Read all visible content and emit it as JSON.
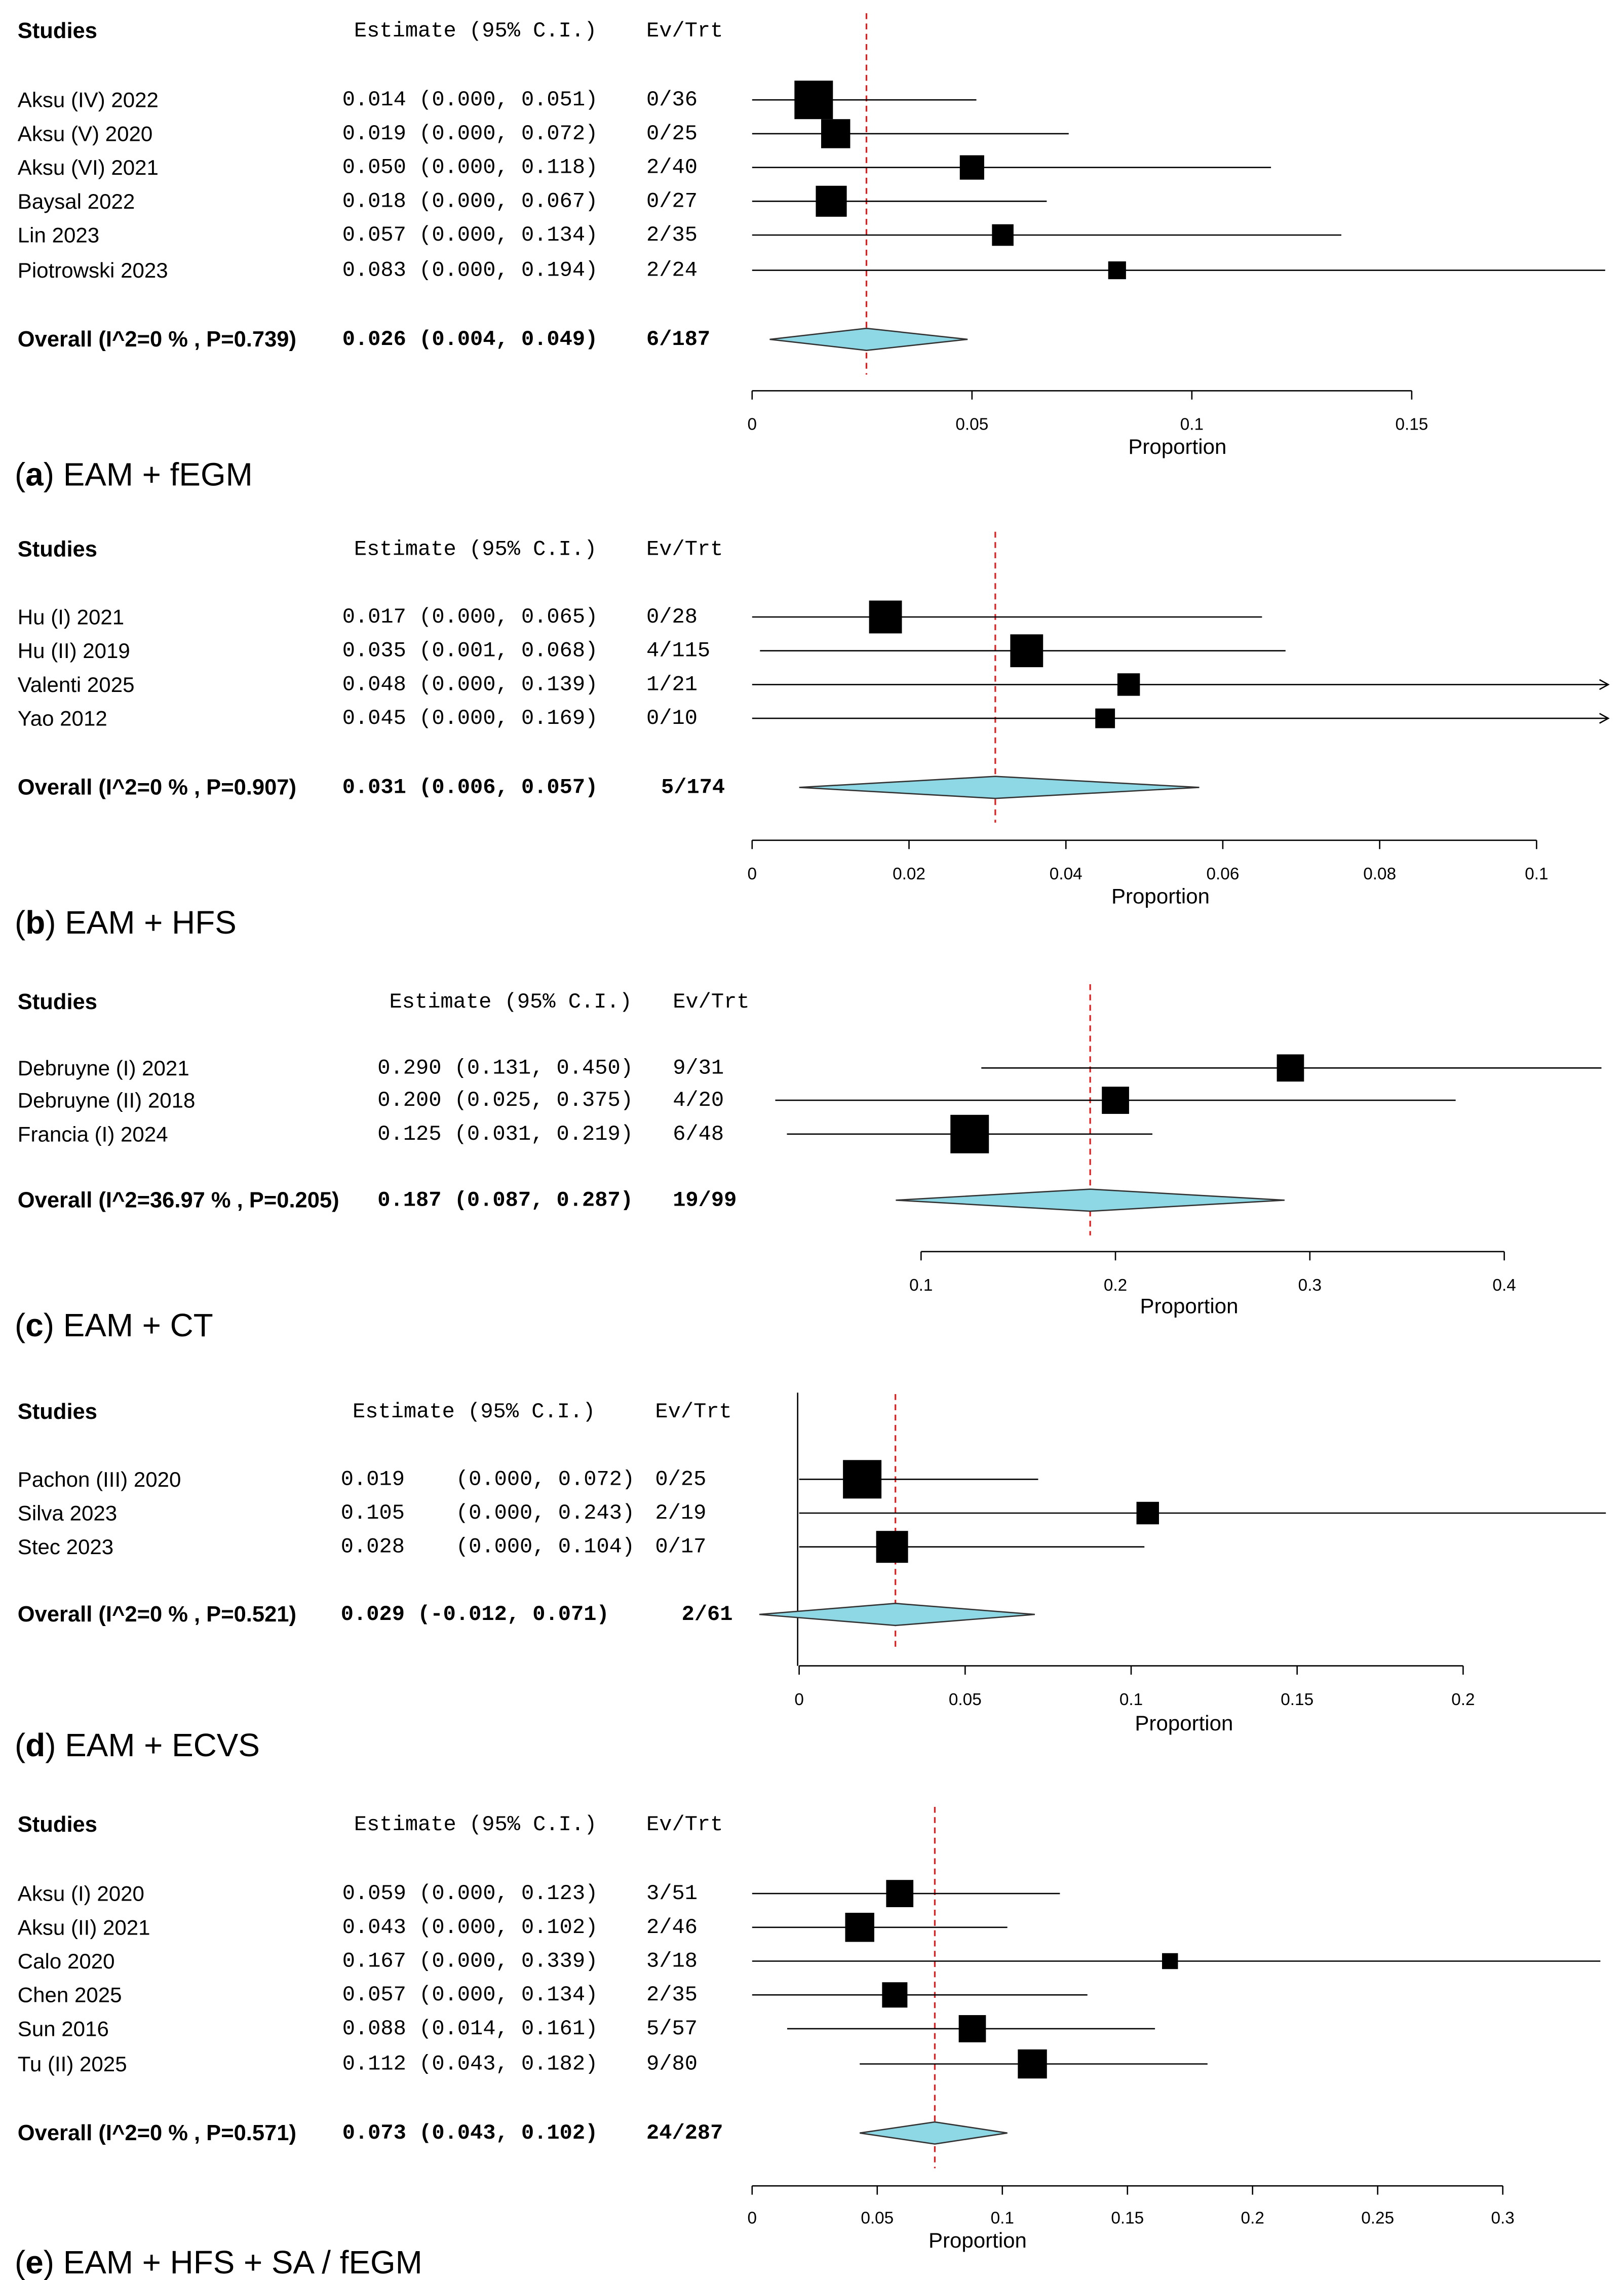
{
  "figure": {
    "headers": {
      "studies": "Studies",
      "estimate": "Estimate (95% C.I.)",
      "evtrt": "Ev/Trt"
    },
    "axis_label": "Proportion",
    "colors": {
      "diamond": "#8ED8E6",
      "reference_line": "#E02020",
      "marker": "#000000"
    }
  },
  "chart_data": [
    {
      "id": "a",
      "type": "forest",
      "caption_letter": "a",
      "caption_text": " EAM + fEGM",
      "xlabel": "Proportion",
      "xlim": [
        0,
        0.15
      ],
      "ticks": [
        0,
        0.05,
        0.1,
        0.15
      ],
      "tick_labels": [
        "0",
        "0.05",
        "0.1",
        "0.15"
      ],
      "reference_line": 0.026,
      "studies": [
        {
          "name": "Aksu (IV) 2022",
          "est": 0.014,
          "lo": 0.0,
          "hi": 0.051,
          "estimate_text": "0.014 (0.000, 0.051)",
          "evtrt": "0/36",
          "weight": 3
        },
        {
          "name": "Aksu (V) 2020",
          "est": 0.019,
          "lo": 0.0,
          "hi": 0.072,
          "estimate_text": "0.019 (0.000, 0.072)",
          "evtrt": "0/25",
          "weight": 2
        },
        {
          "name": "Aksu (VI) 2021",
          "est": 0.05,
          "lo": 0.0,
          "hi": 0.118,
          "estimate_text": "0.050 (0.000, 0.118)",
          "evtrt": "2/40",
          "weight": 1.5
        },
        {
          "name": "Baysal 2022",
          "est": 0.018,
          "lo": 0.0,
          "hi": 0.067,
          "estimate_text": "0.018 (0.000, 0.067)",
          "evtrt": "0/27",
          "weight": 2.2
        },
        {
          "name": "Lin 2023",
          "est": 0.057,
          "lo": 0.0,
          "hi": 0.134,
          "estimate_text": "0.057 (0.000, 0.134)",
          "evtrt": "2/35",
          "weight": 1.2
        },
        {
          "name": "Piotrowski 2023",
          "est": 0.083,
          "lo": 0.0,
          "hi": 0.194,
          "estimate_text": "0.083 (0.000, 0.194)",
          "evtrt": "2/24",
          "weight": 0.8
        }
      ],
      "overall": {
        "label": "Overall (I^2=0 % , P=0.739)",
        "est": 0.026,
        "lo": 0.004,
        "hi": 0.049,
        "estimate_text": "0.026 (0.004, 0.049)",
        "evtrt": "6/187"
      }
    },
    {
      "id": "b",
      "type": "forest",
      "caption_letter": "b",
      "caption_text": " EAM + HFS",
      "xlabel": "Proportion",
      "xlim": [
        0,
        0.1
      ],
      "ticks": [
        0,
        0.02,
        0.04,
        0.06,
        0.08,
        0.1
      ],
      "tick_labels": [
        "0",
        "0.02",
        "0.04",
        "0.06",
        "0.08",
        "0.1"
      ],
      "reference_line": 0.031,
      "studies": [
        {
          "name": "Hu (I) 2021",
          "est": 0.017,
          "lo": 0.0,
          "hi": 0.065,
          "estimate_text": "0.017 (0.000, 0.065)",
          "evtrt": "0/28",
          "weight": 2.4
        },
        {
          "name": "Hu (II) 2019",
          "est": 0.035,
          "lo": 0.001,
          "hi": 0.068,
          "estimate_text": "0.035 (0.001, 0.068)",
          "evtrt": "4/115",
          "weight": 2.4
        },
        {
          "name": "Valenti 2025",
          "est": 0.048,
          "lo": 0.0,
          "hi": 0.139,
          "estimate_text": "0.048 (0.000, 0.139)",
          "evtrt": "1/21",
          "weight": 1.3
        },
        {
          "name": "Yao 2012",
          "est": 0.045,
          "lo": 0.0,
          "hi": 0.169,
          "estimate_text": "0.045 (0.000, 0.169)",
          "evtrt": "0/10",
          "weight": 1
        }
      ],
      "overall": {
        "label": "Overall (I^2=0 % , P=0.907)",
        "est": 0.031,
        "lo": 0.006,
        "hi": 0.057,
        "estimate_text": "0.031 (0.006, 0.057)",
        "evtrt": "5/174"
      }
    },
    {
      "id": "c",
      "type": "forest",
      "caption_letter": "c",
      "caption_text": " EAM + CT",
      "xlabel": "Proportion",
      "xlim": [
        0.1,
        0.4
      ],
      "ticks": [
        0.1,
        0.2,
        0.3,
        0.4
      ],
      "tick_labels": [
        "0.1",
        "0.2",
        "0.3",
        "0.4"
      ],
      "reference_line": 0.187,
      "studies": [
        {
          "name": "Debruyne (I) 2021",
          "est": 0.29,
          "lo": 0.131,
          "hi": 0.45,
          "estimate_text": "0.290 (0.131, 0.450)",
          "evtrt": "9/31",
          "weight": 1.8
        },
        {
          "name": "Debruyne (II) 2018",
          "est": 0.2,
          "lo": 0.025,
          "hi": 0.375,
          "estimate_text": "0.200 (0.025, 0.375)",
          "evtrt": "4/20",
          "weight": 1.8
        },
        {
          "name": "Francia (I) 2024",
          "est": 0.125,
          "lo": 0.031,
          "hi": 0.219,
          "estimate_text": "0.125 (0.031, 0.219)",
          "evtrt": "6/48",
          "weight": 3
        }
      ],
      "overall": {
        "label": "Overall (I^2=36.97 % , P=0.205)",
        "est": 0.187,
        "lo": 0.087,
        "hi": 0.287,
        "estimate_text": "0.187 (0.087, 0.287)",
        "evtrt": "19/99"
      }
    },
    {
      "id": "d",
      "type": "forest",
      "caption_letter": "d",
      "caption_text": " EAM + ECVS",
      "xlabel": "Proportion",
      "xlim": [
        0,
        0.2
      ],
      "ticks": [
        0,
        0.05,
        0.1,
        0.15,
        0.2
      ],
      "tick_labels": [
        "0",
        "0.05",
        "0.1",
        "0.15",
        "0.2"
      ],
      "reference_line": 0.029,
      "studies": [
        {
          "name": "Pachon (III) 2020",
          "est": 0.019,
          "lo": 0.0,
          "hi": 0.072,
          "estimate_text": "0.019    (0.000, 0.072)",
          "evtrt": "0/25",
          "weight": 3
        },
        {
          "name": "Silva 2023",
          "est": 0.105,
          "lo": 0.0,
          "hi": 0.243,
          "estimate_text": "0.105    (0.000, 0.243)",
          "evtrt": "2/19",
          "weight": 1.3
        },
        {
          "name": "Stec 2023",
          "est": 0.028,
          "lo": 0.0,
          "hi": 0.104,
          "estimate_text": "0.028    (0.000, 0.104)",
          "evtrt": "0/17",
          "weight": 2.3
        }
      ],
      "overall": {
        "label": "Overall (I^2=0 % , P=0.521)",
        "est": 0.029,
        "lo": -0.012,
        "hi": 0.071,
        "estimate_text": "0.029 (-0.012, 0.071)",
        "evtrt": "2/61"
      }
    },
    {
      "id": "e",
      "type": "forest",
      "caption_letter": "e",
      "caption_text": " EAM + HFS + SA / fEGM",
      "xlabel": "Proportion",
      "xlim": [
        0,
        0.3
      ],
      "ticks": [
        0,
        0.05,
        0.1,
        0.15,
        0.2,
        0.25,
        0.3
      ],
      "tick_labels": [
        "0",
        "0.05",
        "0.1",
        "0.15",
        "0.2",
        "0.25",
        "0.3"
      ],
      "reference_line": 0.073,
      "studies": [
        {
          "name": "Aksu (I) 2020",
          "est": 0.059,
          "lo": 0.0,
          "hi": 0.123,
          "estimate_text": "0.059 (0.000, 0.123)",
          "evtrt": "3/51",
          "weight": 1.8
        },
        {
          "name": "Aksu (II) 2021",
          "est": 0.043,
          "lo": 0.0,
          "hi": 0.102,
          "estimate_text": "0.043 (0.000, 0.102)",
          "evtrt": "2/46",
          "weight": 2
        },
        {
          "name": "Calo 2020",
          "est": 0.167,
          "lo": 0.0,
          "hi": 0.339,
          "estimate_text": "0.167 (0.000, 0.339)",
          "evtrt": "3/18",
          "weight": 0.6
        },
        {
          "name": "Chen 2025",
          "est": 0.057,
          "lo": 0.0,
          "hi": 0.134,
          "estimate_text": "0.057 (0.000, 0.134)",
          "evtrt": "2/35",
          "weight": 1.6
        },
        {
          "name": "Sun 2016",
          "est": 0.088,
          "lo": 0.014,
          "hi": 0.161,
          "estimate_text": "0.088 (0.014, 0.161)",
          "evtrt": "5/57",
          "weight": 1.8
        },
        {
          "name": "Tu (II) 2025",
          "est": 0.112,
          "lo": 0.043,
          "hi": 0.182,
          "estimate_text": "0.112 (0.043, 0.182)",
          "evtrt": "9/80",
          "weight": 2
        }
      ],
      "overall": {
        "label": "Overall (I^2=0 % , P=0.571)",
        "est": 0.073,
        "lo": 0.043,
        "hi": 0.102,
        "estimate_text": "0.073 (0.043, 0.102)",
        "evtrt": "24/287"
      }
    }
  ]
}
